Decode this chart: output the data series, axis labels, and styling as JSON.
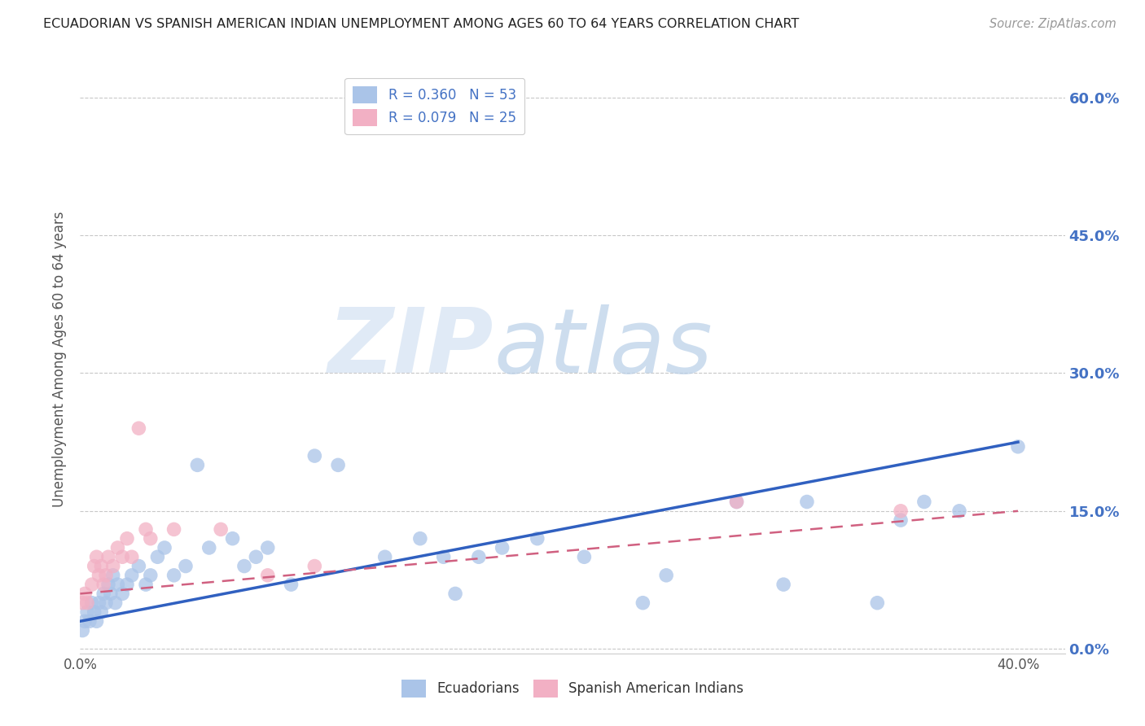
{
  "title": "ECUADORIAN VS SPANISH AMERICAN INDIAN UNEMPLOYMENT AMONG AGES 60 TO 64 YEARS CORRELATION CHART",
  "source": "Source: ZipAtlas.com",
  "ylabel": "Unemployment Among Ages 60 to 64 years",
  "xlim": [
    0.0,
    0.42
  ],
  "ylim": [
    -0.005,
    0.635
  ],
  "yticks": [
    0.0,
    0.15,
    0.3,
    0.45,
    0.6
  ],
  "xtick_positions": [
    0.0,
    0.05,
    0.1,
    0.15,
    0.2,
    0.25,
    0.3,
    0.35,
    0.4
  ],
  "xtick_labels": [
    "0.0%",
    "",
    "",
    "",
    "",
    "",
    "",
    "",
    "40.0%"
  ],
  "background_color": "#ffffff",
  "grid_color": "#c8c8c8",
  "color_blue": "#aac4e8",
  "color_pink": "#f2b0c4",
  "color_blue_text": "#4472c4",
  "color_line_blue": "#3060c0",
  "color_line_pink": "#d06080",
  "legend_r1": "R = 0.360",
  "legend_n1": "N = 53",
  "legend_r2": "R = 0.079",
  "legend_n2": "N = 25",
  "ecu_x": [
    0.001,
    0.002,
    0.003,
    0.004,
    0.005,
    0.006,
    0.007,
    0.008,
    0.009,
    0.01,
    0.011,
    0.012,
    0.013,
    0.014,
    0.015,
    0.016,
    0.018,
    0.02,
    0.022,
    0.025,
    0.028,
    0.03,
    0.033,
    0.036,
    0.04,
    0.045,
    0.05,
    0.055,
    0.065,
    0.07,
    0.075,
    0.08,
    0.09,
    0.1,
    0.11,
    0.13,
    0.145,
    0.155,
    0.16,
    0.17,
    0.18,
    0.195,
    0.215,
    0.24,
    0.25,
    0.28,
    0.3,
    0.31,
    0.34,
    0.35,
    0.36,
    0.375,
    0.4
  ],
  "ecu_y": [
    0.02,
    0.03,
    0.04,
    0.03,
    0.05,
    0.04,
    0.03,
    0.05,
    0.04,
    0.06,
    0.05,
    0.07,
    0.06,
    0.08,
    0.05,
    0.07,
    0.06,
    0.07,
    0.08,
    0.09,
    0.07,
    0.08,
    0.1,
    0.11,
    0.08,
    0.09,
    0.2,
    0.11,
    0.12,
    0.09,
    0.1,
    0.11,
    0.07,
    0.21,
    0.2,
    0.1,
    0.12,
    0.1,
    0.06,
    0.1,
    0.11,
    0.12,
    0.1,
    0.05,
    0.08,
    0.16,
    0.07,
    0.16,
    0.05,
    0.14,
    0.16,
    0.15,
    0.22
  ],
  "spa_x": [
    0.001,
    0.002,
    0.003,
    0.005,
    0.006,
    0.007,
    0.008,
    0.009,
    0.01,
    0.011,
    0.012,
    0.014,
    0.016,
    0.018,
    0.02,
    0.022,
    0.025,
    0.028,
    0.03,
    0.04,
    0.06,
    0.08,
    0.1,
    0.28,
    0.35
  ],
  "spa_y": [
    0.05,
    0.06,
    0.05,
    0.07,
    0.09,
    0.1,
    0.08,
    0.09,
    0.07,
    0.08,
    0.1,
    0.09,
    0.11,
    0.1,
    0.12,
    0.1,
    0.24,
    0.13,
    0.12,
    0.13,
    0.13,
    0.08,
    0.09,
    0.16,
    0.15
  ],
  "ecu_line_x0": 0.0,
  "ecu_line_y0": 0.03,
  "ecu_line_x1": 0.4,
  "ecu_line_y1": 0.225,
  "spa_line_x0": 0.0,
  "spa_line_y0": 0.06,
  "spa_line_x1": 0.4,
  "spa_line_y1": 0.15
}
